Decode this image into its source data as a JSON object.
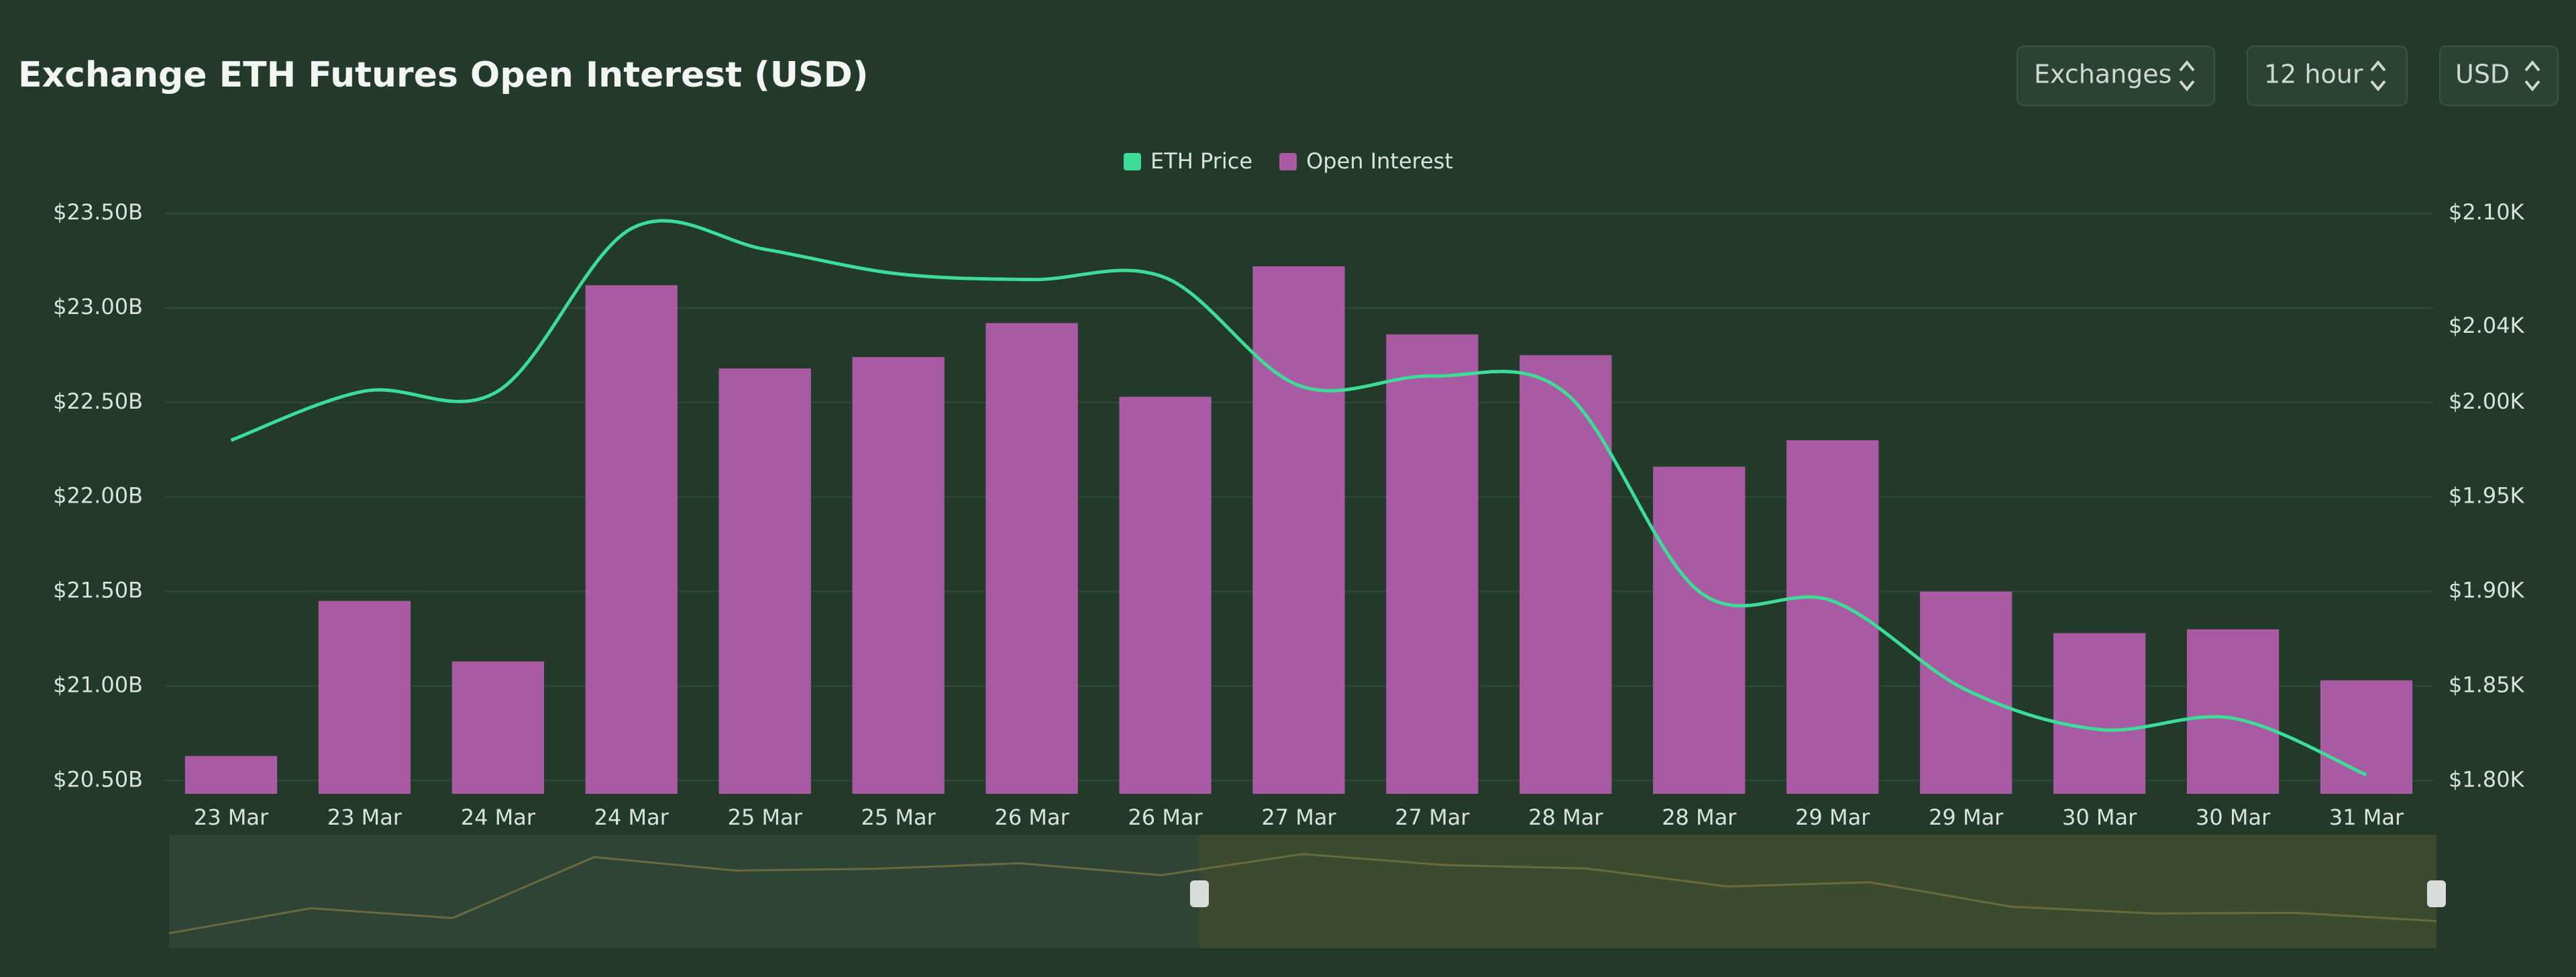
{
  "header": {
    "title": "Exchange ETH Futures Open Interest (USD)",
    "controls": [
      "Exchanges",
      "12 hour",
      "USD"
    ]
  },
  "chart_data": {
    "type": "bar",
    "categories": [
      "23 Mar",
      "23 Mar",
      "24 Mar",
      "24 Mar",
      "25 Mar",
      "25 Mar",
      "26 Mar",
      "26 Mar",
      "27 Mar",
      "27 Mar",
      "28 Mar",
      "28 Mar",
      "29 Mar",
      "29 Mar",
      "30 Mar",
      "30 Mar",
      "31 Mar"
    ],
    "series": [
      {
        "name": "ETH Price",
        "color": "#3ddc97",
        "type": "line",
        "axis": "y2",
        "values": [
          1980,
          2006,
          2006,
          2092,
          2081,
          2068,
          2065,
          2066,
          2009,
          2014,
          2005,
          1900,
          1895,
          1848,
          1827,
          1833,
          1803
        ]
      },
      {
        "name": "Open Interest",
        "color": "#a85aa3",
        "type": "bar",
        "values": [
          20.63,
          21.45,
          21.13,
          23.12,
          22.68,
          22.74,
          22.92,
          22.53,
          23.22,
          22.86,
          22.75,
          22.16,
          22.3,
          21.5,
          21.28,
          21.3,
          21.03
        ]
      }
    ],
    "ylim": [
      20.43,
      23.5
    ],
    "yticks": [
      {
        "value": 20.5,
        "label": "$20.50B"
      },
      {
        "value": 21,
        "label": "$21.00B"
      },
      {
        "value": 21.5,
        "label": "$21.50B"
      },
      {
        "value": 22,
        "label": "$22.00B"
      },
      {
        "value": 22.5,
        "label": "$22.50B"
      },
      {
        "value": 23,
        "label": "$23.00B"
      },
      {
        "value": 23.5,
        "label": "$23.50B"
      }
    ],
    "y2lim": [
      1793,
      2100
    ],
    "y2ticks": [
      {
        "value": 1800,
        "label": "$1.80K"
      },
      {
        "value": 1850,
        "label": "$1.85K"
      },
      {
        "value": 1900,
        "label": "$1.90K"
      },
      {
        "value": 1950,
        "label": "$1.95K"
      },
      {
        "value": 2000,
        "label": "$2.00K"
      },
      {
        "value": 2040,
        "label": "$2.04K"
      },
      {
        "value": 2100,
        "label": "$2.10K"
      }
    ],
    "grid": true,
    "legend": "top"
  }
}
